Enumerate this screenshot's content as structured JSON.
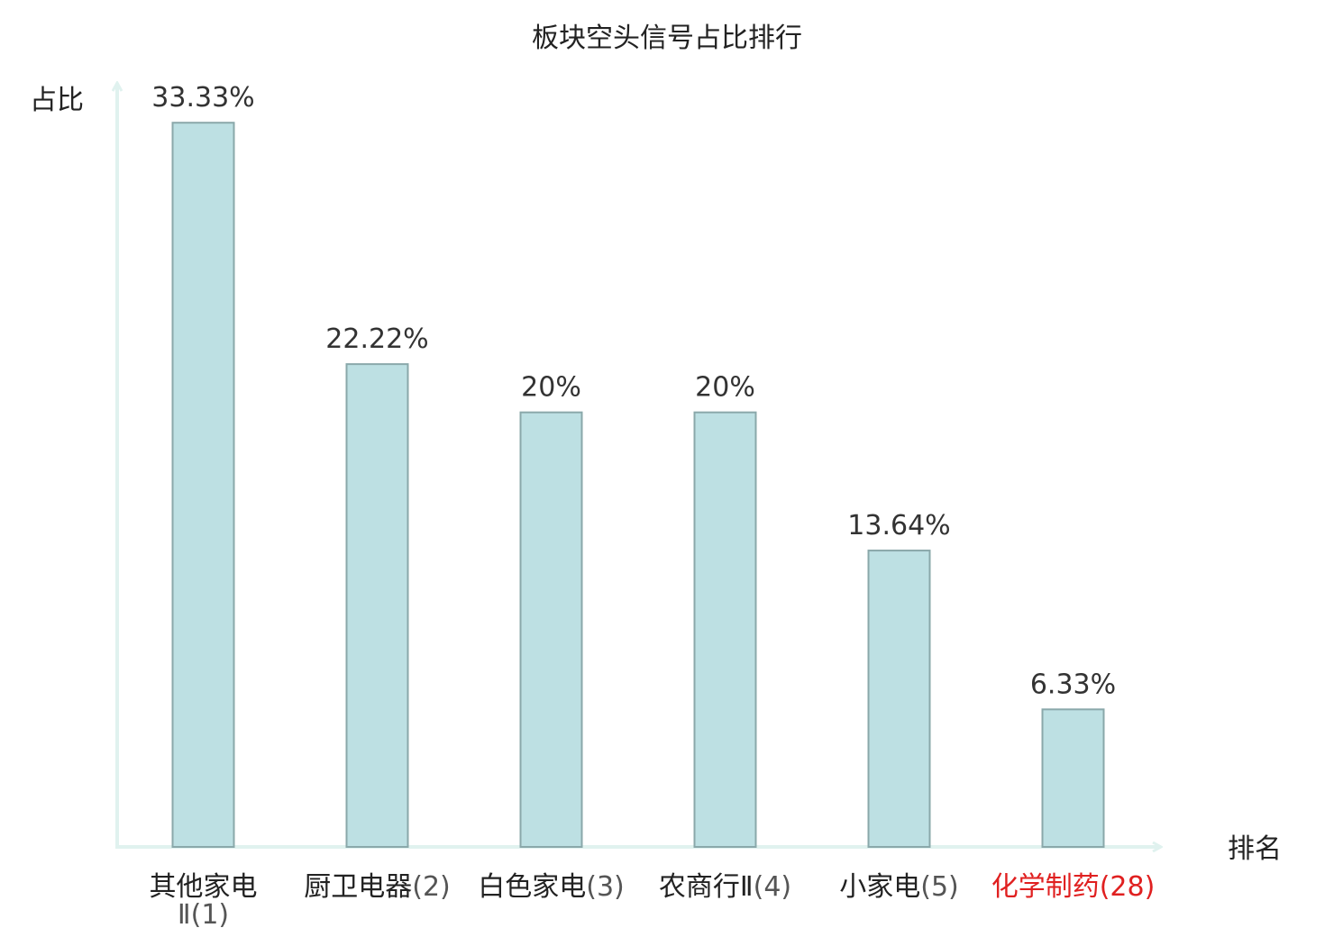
{
  "chart_data": {
    "type": "bar",
    "title": "板块空头信号占比排行",
    "ylabel": "占比",
    "xlabel": "排名",
    "categories": [
      {
        "name": "其他家电",
        "rank": "Ⅱ(1)",
        "highlight": false
      },
      {
        "name": "厨卫电器",
        "rank": "(2)",
        "highlight": false
      },
      {
        "name": "白色家电",
        "rank": "(3)",
        "highlight": false
      },
      {
        "name": "农商行Ⅱ",
        "rank": "(4)",
        "highlight": false
      },
      {
        "name": "小家电",
        "rank": "(5)",
        "highlight": false
      },
      {
        "name": "化学制药",
        "rank": "(28)",
        "highlight": true
      }
    ],
    "values": [
      33.33,
      22.22,
      20,
      20,
      13.64,
      6.33
    ],
    "value_labels": [
      "33.33%",
      "22.22%",
      "20%",
      "20%",
      "13.64%",
      "6.33%"
    ],
    "ylim": [
      0,
      34.5
    ],
    "grid": false,
    "colors": {
      "bar_fill": "#bde0e3",
      "bar_stroke": "#8aa8aa",
      "axis": "#e0f2ef",
      "highlight_text": "#e02020",
      "normal_text": "#222222"
    }
  }
}
